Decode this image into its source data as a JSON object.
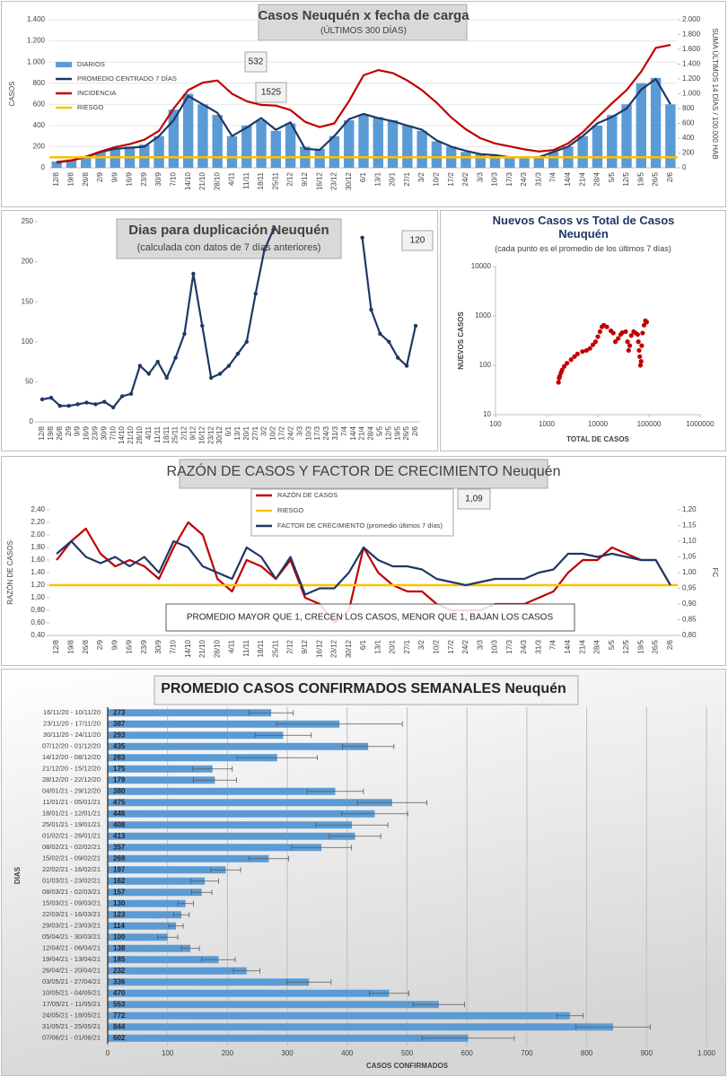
{
  "chart_data": [
    {
      "type": "bar",
      "title": "Casos Neuquén x fecha de carga",
      "subtitle": "(ÚLTIMOS 300 DÍAS)",
      "ylabel": "CASOS",
      "y2label": "SUMA ÚLTIMOS 14 DÍAS / 100.000 HAB",
      "grid": true,
      "categories": [
        "12/8",
        "19/8",
        "26/8",
        "2/9",
        "9/9",
        "16/9",
        "23/9",
        "30/9",
        "7/10",
        "14/10",
        "21/10",
        "28/10",
        "4/11",
        "11/11",
        "18/11",
        "25/11",
        "2/12",
        "9/12",
        "16/12",
        "23/12",
        "30/12",
        "6/1",
        "13/1",
        "20/1",
        "27/1",
        "3/2",
        "10/2",
        "17/2",
        "24/2",
        "3/3",
        "10/3",
        "17/3",
        "24/3",
        "31/3",
        "7/4",
        "14/4",
        "21/4",
        "28/4",
        "5/5",
        "12/5",
        "19/5",
        "26/5",
        "2/6"
      ],
      "ylim": [
        0,
        1400
      ],
      "yticks": [
        0,
        200,
        400,
        600,
        800,
        {
          "value": 1000,
          "label": "1.000"
        },
        {
          "value": 1200,
          "label": "1.200"
        },
        {
          "value": 1400,
          "label": "1.400"
        }
      ],
      "y2lim": [
        0,
        2000
      ],
      "y2ticks": [
        0,
        200,
        400,
        600,
        800,
        {
          "value": 1000,
          "label": "1.000"
        },
        {
          "value": 1200,
          "label": "1.200"
        },
        {
          "value": 1400,
          "label": "1.400"
        },
        {
          "value": 1600,
          "label": "1.600"
        },
        {
          "value": 1800,
          "label": "1.800"
        },
        {
          "value": 2000,
          "label": "2.000"
        }
      ],
      "series": [
        {
          "name": "DIARIOS",
          "color": "#5b9bd5",
          "values": [
            60,
            80,
            100,
            150,
            180,
            200,
            220,
            300,
            550,
            700,
            600,
            500,
            300,
            400,
            450,
            350,
            420,
            200,
            180,
            300,
            450,
            500,
            480,
            450,
            400,
            350,
            250,
            200,
            150,
            130,
            120,
            100,
            110,
            100,
            150,
            200,
            300,
            400,
            500,
            600,
            800,
            850,
            600
          ]
        },
        {
          "name": "PROMEDIO CENTRADO 7 DÍAS",
          "type": "line",
          "color": "#1f3864",
          "values": [
            50,
            70,
            100,
            150,
            180,
            190,
            200,
            300,
            450,
            680,
            600,
            520,
            300,
            380,
            470,
            360,
            430,
            180,
            170,
            300,
            460,
            510,
            470,
            440,
            400,
            360,
            260,
            200,
            160,
            130,
            120,
            100,
            100,
            100,
            150,
            200,
            300,
            420,
            480,
            560,
            740,
            840,
            600
          ]
        },
        {
          "name": "INCIDENCIA",
          "type": "line",
          "axis": "y2",
          "color": "#c00000",
          "values": [
            80,
            100,
            150,
            220,
            280,
            320,
            380,
            500,
            800,
            1050,
            1150,
            1180,
            1000,
            900,
            850,
            840,
            780,
            620,
            550,
            600,
            900,
            1250,
            1320,
            1280,
            1180,
            1050,
            880,
            680,
            520,
            400,
            330,
            290,
            250,
            220,
            240,
            330,
            480,
            680,
            870,
            1050,
            1300,
            1620,
            1660
          ]
        },
        {
          "name": "RIESGO",
          "type": "hline",
          "color": "#ffc000",
          "value": 100
        }
      ],
      "annotations": [
        532,
        1525
      ]
    },
    {
      "type": "line",
      "title": "Dias para duplicación Neuquén",
      "subtitle": "(calculada con datos de 7 días anteriores)",
      "categories": [
        "12/8",
        "19/8",
        "26/8",
        "2/9",
        "9/9",
        "16/9",
        "23/9",
        "30/9",
        "7/10",
        "14/10",
        "21/10",
        "28/10",
        "4/11",
        "11/11",
        "18/11",
        "25/11",
        "2/12",
        "9/12",
        "16/12",
        "23/12",
        "30/12",
        "6/1",
        "13/1",
        "20/1",
        "27/1",
        "3/2",
        "10/2",
        "17/2",
        "24/2",
        "3/3",
        "10/3",
        "17/3",
        "24/3",
        "31/3",
        "7/4",
        "14/4",
        "21/4",
        "28/4",
        "5/5",
        "12/5",
        "19/5",
        "26/5",
        "2/6"
      ],
      "values": [
        28,
        30,
        20,
        20,
        22,
        24,
        22,
        25,
        18,
        32,
        35,
        70,
        60,
        75,
        55,
        80,
        110,
        185,
        120,
        55,
        60,
        70,
        85,
        100,
        160,
        215,
        240,
        null,
        null,
        null,
        null,
        null,
        null,
        null,
        null,
        null,
        230,
        140,
        110,
        100,
        80,
        70,
        120
      ],
      "color": "#1f3864",
      "markers": true,
      "grid": false,
      "ylim": [
        0,
        250
      ],
      "yticks": [
        0,
        50,
        100,
        150,
        200,
        250
      ],
      "annotation": 120
    },
    {
      "type": "scatter",
      "title": "Nuevos Casos vs Total de Casos Neuquén",
      "subtitle": "(cada punto es el promedio de los últimos 7 días)",
      "xlabel": "TOTAL DE CASOS",
      "ylabel": "NUEVOS CASOS",
      "xlog": true,
      "ylog": true,
      "color": "#c00000",
      "x": [
        1700,
        1750,
        1800,
        1900,
        2000,
        2200,
        2500,
        3000,
        3500,
        4000,
        5000,
        6000,
        7000,
        8000,
        9000,
        10000,
        11000,
        12000,
        13000,
        15000,
        18000,
        20000,
        22000,
        25000,
        28000,
        30000,
        35000,
        38000,
        40000,
        42000,
        45000,
        50000,
        55000,
        60000,
        62000,
        64000,
        66000,
        68000,
        70000,
        72000,
        75000,
        80000,
        85000,
        90000
      ],
      "values": [
        45,
        55,
        60,
        70,
        80,
        95,
        110,
        130,
        150,
        170,
        190,
        200,
        220,
        260,
        300,
        380,
        480,
        600,
        650,
        600,
        500,
        450,
        300,
        350,
        420,
        460,
        480,
        300,
        200,
        250,
        400,
        480,
        450,
        420,
        300,
        200,
        150,
        100,
        120,
        250,
        450,
        650,
        800,
        750
      ],
      "xlim": [
        100,
        1000000
      ],
      "xticks": [
        100,
        1000,
        10000,
        100000,
        1000000
      ],
      "ylim": [
        10,
        10000
      ],
      "yticks": [
        10,
        100,
        1000,
        10000
      ]
    },
    {
      "type": "line",
      "title": "RAZÓN DE CASOS Y FACTOR DE CRECIMIENTO Neuquén",
      "ylabel": "RAZÓN DE CASOS",
      "y2label": "FC",
      "grid": false,
      "categories": [
        "12/8",
        "19/8",
        "26/8",
        "2/9",
        "9/9",
        "16/9",
        "23/9",
        "30/9",
        "7/10",
        "14/10",
        "21/10",
        "28/10",
        "4/11",
        "11/11",
        "18/11",
        "25/11",
        "2/12",
        "9/12",
        "16/12",
        "23/12",
        "30/12",
        "6/1",
        "13/1",
        "20/1",
        "27/1",
        "3/2",
        "10/2",
        "17/2",
        "24/2",
        "3/3",
        "10/3",
        "17/3",
        "24/3",
        "31/3",
        "7/4",
        "14/4",
        "21/4",
        "28/4",
        "5/5",
        "12/5",
        "19/5",
        "26/5",
        "2/6"
      ],
      "ylim": [
        0.4,
        2.4
      ],
      "yticks": [
        {
          "value": 0.4,
          "label": "0,40"
        },
        {
          "value": 0.6,
          "label": "0,60"
        },
        {
          "value": 0.8,
          "label": "0,80"
        },
        {
          "value": 1.0,
          "label": "1,00"
        },
        {
          "value": 1.2,
          "label": "1,20"
        },
        {
          "value": 1.4,
          "label": "1,40"
        },
        {
          "value": 1.6,
          "label": "1,60"
        },
        {
          "value": 1.8,
          "label": "1,80"
        },
        {
          "value": 2.0,
          "label": "2,00"
        },
        {
          "value": 2.2,
          "label": "2,20"
        },
        {
          "value": 2.4,
          "label": "2,40"
        }
      ],
      "y2lim": [
        0.8,
        1.2
      ],
      "y2ticks": [
        {
          "value": 0.8,
          "label": "0,80"
        },
        {
          "value": 0.85,
          "label": "0,85"
        },
        {
          "value": 0.9,
          "label": "0,90"
        },
        {
          "value": 0.95,
          "label": "0,95"
        },
        {
          "value": 1.0,
          "label": "1,00"
        },
        {
          "value": 1.05,
          "label": "1,05"
        },
        {
          "value": 1.1,
          "label": "1,10"
        },
        {
          "value": 1.15,
          "label": "1,15"
        },
        {
          "value": 1.2,
          "label": "1,20"
        }
      ],
      "series": [
        {
          "name": "RAZÓN DE CASOS",
          "color": "#c00000",
          "values": [
            1.6,
            1.9,
            2.1,
            1.7,
            1.5,
            1.6,
            1.5,
            1.3,
            1.8,
            2.2,
            2.0,
            1.3,
            1.1,
            1.6,
            1.5,
            1.3,
            1.6,
            1.0,
            0.9,
            0.6,
            0.8,
            1.8,
            1.4,
            1.2,
            1.1,
            1.1,
            0.9,
            0.8,
            0.8,
            0.8,
            0.9,
            0.9,
            0.9,
            1.0,
            1.1,
            1.4,
            1.6,
            1.6,
            1.8,
            1.7,
            1.6,
            1.6,
            1.2
          ]
        },
        {
          "name": "RIESGO",
          "type": "hline",
          "color": "#ffc000",
          "value": 1.2
        },
        {
          "name": "FACTOR DE CRECIMIENTO (promedio últimos 7 días)",
          "axis": "y2",
          "color": "#1f3864",
          "values": [
            1.06,
            1.1,
            1.05,
            1.03,
            1.05,
            1.02,
            1.05,
            1.0,
            1.1,
            1.08,
            1.02,
            1.0,
            0.98,
            1.08,
            1.05,
            0.98,
            1.05,
            0.93,
            0.95,
            0.95,
            1.0,
            1.08,
            1.04,
            1.02,
            1.02,
            1.01,
            0.98,
            0.97,
            0.96,
            0.97,
            0.98,
            0.98,
            0.98,
            1.0,
            1.01,
            1.06,
            1.06,
            1.05,
            1.06,
            1.05,
            1.04,
            1.04,
            0.96
          ]
        }
      ],
      "annotation": {
        "value": 1.09,
        "label": "1,09"
      },
      "note": "PROMEDIO MAYOR QUE 1, CRECEN LOS CASOS, MENOR QUE 1, BAJAN LOS CASOS"
    },
    {
      "type": "bar",
      "orientation": "horizontal",
      "title": "PROMEDIO CASOS CONFIRMADOS SEMANALES Neuquén",
      "xlabel": "CASOS CONFIRMADOS",
      "ylabel": "DIAS",
      "grid": true,
      "color": "#5b9bd5",
      "categories": [
        "16/11/20 - 10/11/20",
        "23/11/20 - 17/11/20",
        "30/11/20 - 24/11/20",
        "07/12/20 - 01/12/20",
        "14/12/20 - 08/12/20",
        "21/12/20 - 15/12/20",
        "28/12/20 - 22/12/20",
        "04/01/21 - 29/12/20",
        "11/01/21 - 05/01/21",
        "18/01/21 - 12/01/21",
        "25/01/21 - 19/01/21",
        "01/02/21 - 26/01/21",
        "08/02/21 - 02/02/21",
        "15/02/21 - 09/02/21",
        "22/02/21 - 16/02/21",
        "01/03/21 - 23/02/21",
        "08/03/21 - 02/03/21",
        "15/03/21 - 09/03/21",
        "22/03/21 - 16/03/21",
        "29/03/21 - 23/03/21",
        "05/04/21 - 30/03/21",
        "12/04/21 - 06/04/21",
        "19/04/21 - 13/04/21",
        "26/04/21 - 20/04/21",
        "03/05/21 - 27/04/21",
        "10/05/21 - 04/05/21",
        "17/05/21 - 11/05/21",
        "24/05/21 - 18/05/21",
        "31/05/21 - 25/05/21",
        "07/06/21 - 01/06/21"
      ],
      "values": [
        273,
        387,
        293,
        435,
        283,
        175,
        179,
        380,
        475,
        446,
        408,
        413,
        357,
        269,
        197,
        162,
        157,
        130,
        123,
        114,
        100,
        138,
        185,
        232,
        336,
        470,
        553,
        772,
        844,
        602
      ],
      "errors": [
        37,
        105,
        47,
        43,
        67,
        33,
        36,
        47,
        58,
        55,
        60,
        43,
        50,
        33,
        25,
        23,
        17,
        13,
        13,
        12,
        17,
        15,
        28,
        22,
        37,
        33,
        43,
        22,
        62,
        77
      ],
      "xlim": [
        0,
        1000
      ],
      "xticks": [
        0,
        100,
        200,
        300,
        400,
        500,
        600,
        700,
        800,
        900,
        {
          "value": 1000,
          "label": "1.000"
        }
      ]
    }
  ]
}
